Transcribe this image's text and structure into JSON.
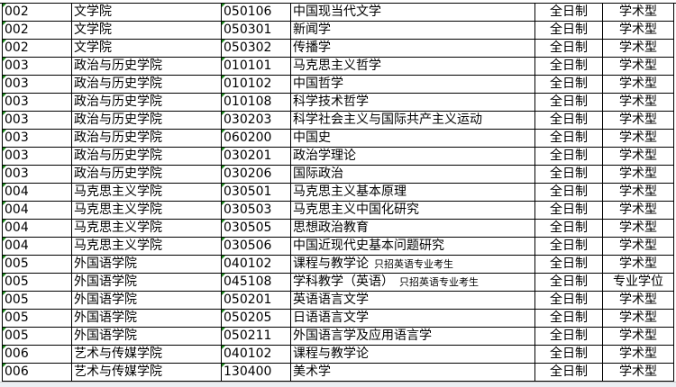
{
  "rows": [
    [
      "002",
      "文学院",
      "050106",
      "中国现当代文学",
      "",
      "全日制",
      "学术型"
    ],
    [
      "002",
      "文学院",
      "050301",
      "新闻学",
      "",
      "全日制",
      "学术型"
    ],
    [
      "002",
      "文学院",
      "050302",
      "传播学",
      "",
      "全日制",
      "学术型"
    ],
    [
      "003",
      "政治与历史学院",
      "010101",
      "马克思主义哲学",
      "",
      "全日制",
      "学术型"
    ],
    [
      "003",
      "政治与历史学院",
      "010102",
      "中国哲学",
      "",
      "全日制",
      "学术型"
    ],
    [
      "003",
      "政治与历史学院",
      "010108",
      "科学技术哲学",
      "",
      "全日制",
      "学术型"
    ],
    [
      "003",
      "政治与历史学院",
      "030203",
      "科学社会主义与国际共产主义运动",
      "",
      "全日制",
      "学术型"
    ],
    [
      "003",
      "政治与历史学院",
      "060200",
      "中国史",
      "",
      "全日制",
      "学术型"
    ],
    [
      "003",
      "政治与历史学院",
      "030201",
      "政治学理论",
      "",
      "全日制",
      "学术型"
    ],
    [
      "003",
      "政治与历史学院",
      "030206",
      "国际政治",
      "",
      "全日制",
      "学术型"
    ],
    [
      "004",
      "马克思主义学院",
      "030501",
      "马克思主义基本原理",
      "",
      "全日制",
      "学术型"
    ],
    [
      "004",
      "马克思主义学院",
      "030503",
      "马克思主义中国化研究",
      "",
      "全日制",
      "学术型"
    ],
    [
      "004",
      "马克思主义学院",
      "030505",
      "思想政治教育",
      "",
      "全日制",
      "学术型"
    ],
    [
      "004",
      "马克思主义学院",
      "030506",
      "中国近现代史基本问题研究",
      "",
      "全日制",
      "学术型"
    ],
    [
      "005",
      "外国语学院",
      "040102",
      "课程与教学论",
      "只招英语专业考生",
      "全日制",
      "学术型"
    ],
    [
      "005",
      "外国语学院",
      "045108",
      "学科教学（英语）",
      "只招英语专业考生",
      "全日制",
      "专业学位"
    ],
    [
      "005",
      "外国语学院",
      "050201",
      "英语语言文学",
      "",
      "全日制",
      "学术型"
    ],
    [
      "005",
      "外国语学院",
      "050205",
      "日语语言文学",
      "",
      "全日制",
      "学术型"
    ],
    [
      "005",
      "外国语学院",
      "050211",
      "外国语言学及应用语言学",
      "",
      "全日制",
      "学术型"
    ],
    [
      "006",
      "艺术与传媒学院",
      "040102",
      "课程与教学论",
      "",
      "全日制",
      "学术型"
    ],
    [
      "006",
      "艺术与传媒学院",
      "130400",
      "美术学",
      "",
      "全日制",
      "学术型"
    ]
  ]
}
